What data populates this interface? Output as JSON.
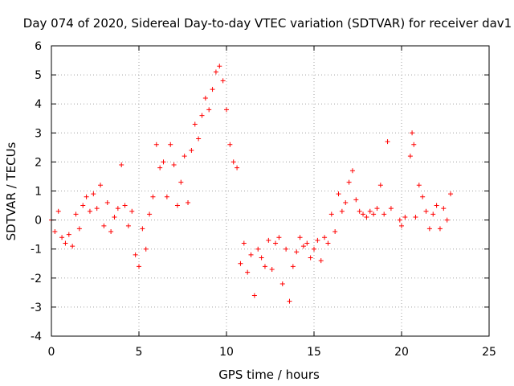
{
  "chart_data": {
    "type": "scatter",
    "title": "Day 074 of 2020, Sidereal Day-to-day VTEC variation (SDTVAR) for receiver dav1",
    "xlabel": "GPS time / hours",
    "ylabel": "SDTVAR / TECUs",
    "xlim": [
      0,
      25
    ],
    "ylim": [
      -4,
      6
    ],
    "xticks": [
      0,
      5,
      10,
      15,
      20,
      25
    ],
    "yticks": [
      -4,
      -3,
      -2,
      -1,
      0,
      1,
      2,
      3,
      4,
      5,
      6
    ],
    "grid": true,
    "marker": "+",
    "series": [
      {
        "name": "SDTVAR",
        "color": "#ff0000",
        "x": [
          0.0,
          0.2,
          0.4,
          0.6,
          0.8,
          1.0,
          1.2,
          1.4,
          1.6,
          1.8,
          2.0,
          2.2,
          2.4,
          2.6,
          2.8,
          3.0,
          3.2,
          3.4,
          3.6,
          3.8,
          4.0,
          4.2,
          4.4,
          4.6,
          4.8,
          5.0,
          5.2,
          5.4,
          5.6,
          5.8,
          6.0,
          6.2,
          6.4,
          6.6,
          6.8,
          7.0,
          7.2,
          7.4,
          7.6,
          7.8,
          8.0,
          8.2,
          8.4,
          8.6,
          8.8,
          9.0,
          9.2,
          9.4,
          9.6,
          9.8,
          10.0,
          10.2,
          10.4,
          10.6,
          10.8,
          11.0,
          11.2,
          11.4,
          11.6,
          11.8,
          12.0,
          12.2,
          12.4,
          12.6,
          12.8,
          13.0,
          13.2,
          13.4,
          13.6,
          13.8,
          14.0,
          14.2,
          14.4,
          14.6,
          14.8,
          15.0,
          15.2,
          15.4,
          15.6,
          15.8,
          16.0,
          16.2,
          16.4,
          16.6,
          16.8,
          17.0,
          17.2,
          17.4,
          17.6,
          17.8,
          18.0,
          18.2,
          18.4,
          18.6,
          18.8,
          19.0,
          19.2,
          19.4,
          19.9,
          20.0,
          20.2,
          20.5,
          20.6,
          20.7,
          20.8,
          21.0,
          21.2,
          21.4,
          21.6,
          21.8,
          22.0,
          22.2,
          22.4,
          22.6,
          22.8
        ],
        "y": [
          0.0,
          -0.4,
          0.3,
          -0.6,
          -0.8,
          -0.5,
          -0.9,
          0.2,
          -0.3,
          0.5,
          0.8,
          0.3,
          0.9,
          0.4,
          1.2,
          -0.2,
          0.6,
          -0.4,
          0.1,
          0.4,
          1.9,
          0.5,
          -0.2,
          0.3,
          -1.2,
          -1.6,
          -0.3,
          -1.0,
          0.2,
          0.8,
          2.6,
          1.8,
          2.0,
          0.8,
          2.6,
          1.9,
          0.5,
          1.3,
          2.2,
          0.6,
          2.4,
          3.3,
          2.8,
          3.6,
          4.2,
          3.8,
          4.5,
          5.1,
          5.3,
          4.8,
          3.8,
          2.6,
          2.0,
          1.8,
          -1.5,
          -0.8,
          -1.8,
          -1.2,
          -2.6,
          -1.0,
          -1.3,
          -1.6,
          -0.7,
          -1.7,
          -0.8,
          -0.6,
          -2.2,
          -1.0,
          -2.8,
          -1.6,
          -1.1,
          -0.6,
          -0.9,
          -0.8,
          -1.3,
          -1.0,
          -0.7,
          -1.4,
          -0.6,
          -0.8,
          0.2,
          -0.4,
          0.9,
          0.3,
          0.6,
          1.3,
          1.7,
          0.7,
          0.3,
          0.2,
          0.1,
          0.3,
          0.2,
          0.4,
          1.2,
          0.2,
          2.7,
          0.4,
          0.0,
          -0.2,
          0.1,
          2.2,
          3.0,
          2.6,
          0.1,
          1.2,
          0.8,
          0.3,
          -0.3,
          0.2,
          0.5,
          -0.3,
          0.4,
          0.0,
          0.9
        ]
      }
    ]
  }
}
